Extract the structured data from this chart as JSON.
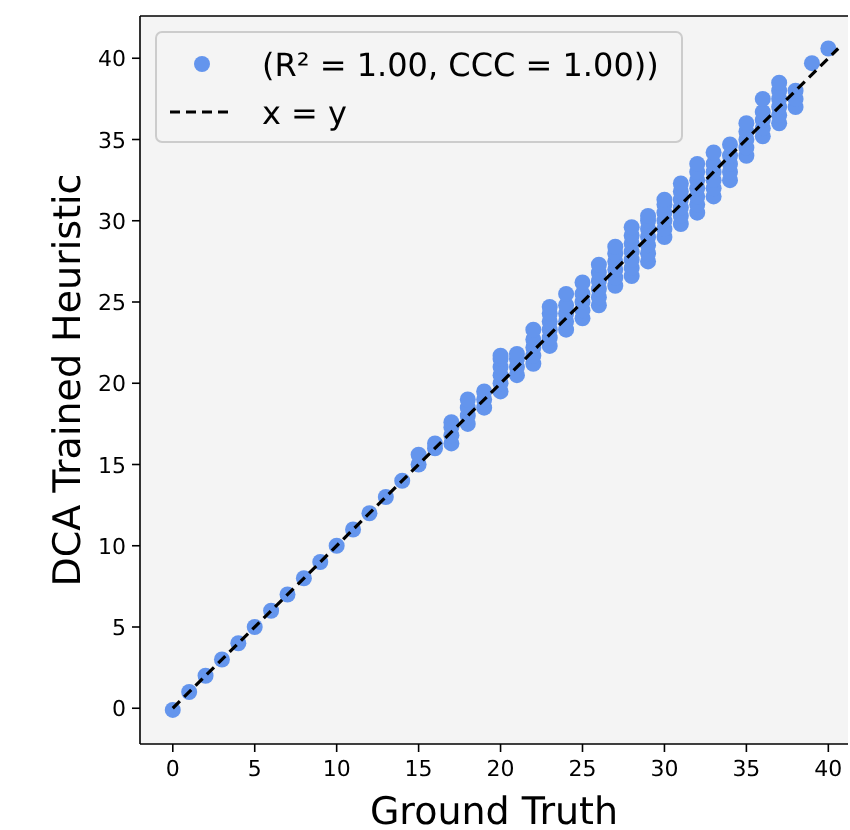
{
  "chart_data": {
    "type": "scatter",
    "xlabel": "Ground Truth",
    "ylabel": "DCA Trained Heuristic",
    "xlim": [
      -2,
      41.2
    ],
    "ylim": [
      -2.2,
      42.6
    ],
    "xticks": [
      0,
      5,
      10,
      15,
      20,
      25,
      30,
      35,
      40
    ],
    "yticks": [
      0,
      5,
      10,
      15,
      20,
      25,
      30,
      35,
      40
    ],
    "legend": "top left",
    "grid": false,
    "series": [
      {
        "name": "(R² = 1.00, CCC = 1.00))",
        "marker": "circle",
        "color": "#6495ed",
        "x": [
          0,
          1,
          2,
          3,
          4,
          5,
          6,
          7,
          8,
          9,
          10,
          11,
          12,
          13,
          14,
          15,
          15,
          16,
          16,
          17,
          17,
          17,
          17,
          18,
          18,
          18,
          18,
          19,
          19,
          19,
          20,
          20,
          20,
          20,
          20,
          20,
          21,
          21,
          21,
          21,
          22,
          22,
          22,
          22,
          22,
          23,
          23,
          23,
          23,
          23,
          23,
          24,
          24,
          24,
          24,
          24,
          25,
          25,
          25,
          25,
          25,
          26,
          26,
          26,
          26,
          26,
          26,
          27,
          27,
          27,
          27,
          27,
          27,
          28,
          28,
          28,
          28,
          28,
          28,
          28,
          29,
          29,
          29,
          29,
          29,
          29,
          29,
          30,
          30,
          30,
          30,
          30,
          30,
          31,
          31,
          31,
          31,
          31,
          31,
          32,
          32,
          32,
          32,
          32,
          32,
          32,
          33,
          33,
          33,
          33,
          33,
          33,
          34,
          34,
          34,
          34,
          34,
          35,
          35,
          35,
          35,
          35,
          36,
          36,
          36,
          36,
          36,
          37,
          37,
          37,
          37,
          37,
          37,
          38,
          38,
          38,
          39,
          40
        ],
        "values": [
          -0.1,
          1,
          2,
          3,
          4,
          5,
          6,
          7,
          8,
          9,
          10,
          11,
          12,
          13,
          14,
          15,
          15.6,
          16,
          16.3,
          16.3,
          16.8,
          17.3,
          17.6,
          17.5,
          18,
          18.5,
          19,
          18.5,
          19,
          19.5,
          19.5,
          20,
          20.5,
          21,
          21.5,
          21.7,
          20.5,
          21,
          21.5,
          21.8,
          21.2,
          21.7,
          22.2,
          22.7,
          23.3,
          22.3,
          22.8,
          23.3,
          23.8,
          24.3,
          24.7,
          23.3,
          23.8,
          24.3,
          24.8,
          25.5,
          24,
          24.5,
          25,
          25.5,
          26.2,
          24.8,
          25.3,
          25.8,
          26.3,
          26.8,
          27.3,
          26,
          26.5,
          27,
          27.5,
          28,
          28.4,
          26.6,
          27.1,
          27.6,
          28.1,
          28.6,
          29.1,
          29.6,
          27.5,
          28,
          28.5,
          29,
          29.5,
          30,
          30.3,
          29,
          29.5,
          30,
          30.5,
          31,
          31.3,
          29.8,
          30.3,
          30.8,
          31.3,
          31.8,
          32.3,
          30.5,
          31,
          31.5,
          32,
          32.5,
          33,
          33.5,
          31.5,
          32,
          32.5,
          33,
          33.5,
          34.2,
          32.5,
          33,
          33.5,
          34,
          34.7,
          34,
          34.5,
          35,
          35.5,
          36,
          35.2,
          35.7,
          36.2,
          36.7,
          37.5,
          36,
          36.5,
          37,
          37.5,
          38,
          38.5,
          37,
          37.5,
          38,
          39.7,
          40.6
        ]
      },
      {
        "name": "x = y",
        "type": "line",
        "marker": "none",
        "line_style": "dashed",
        "color": "#000000",
        "x": [
          0,
          40.6
        ],
        "values": [
          0,
          40.6
        ]
      }
    ]
  }
}
